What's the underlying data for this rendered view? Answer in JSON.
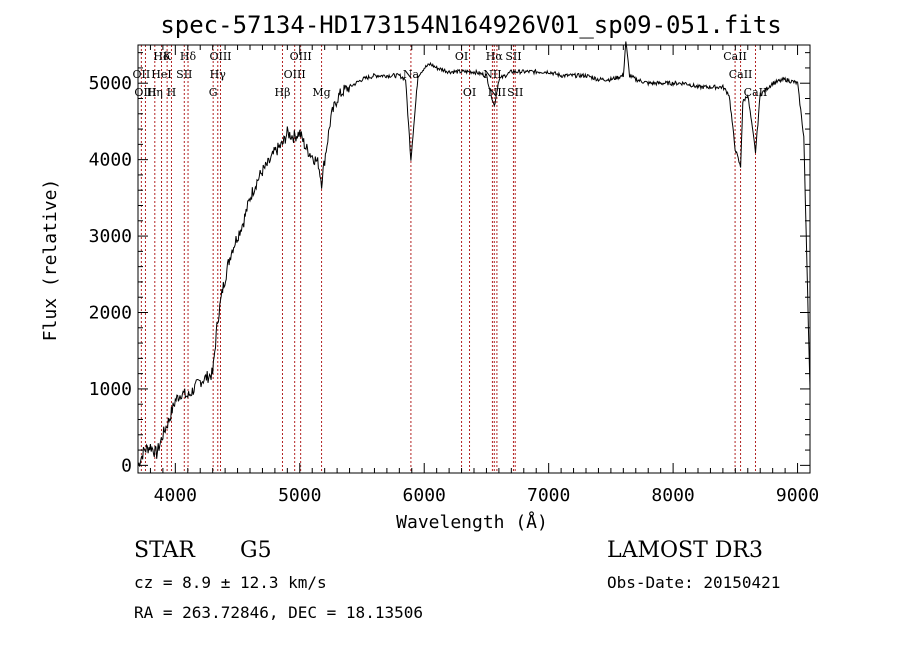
{
  "chart_data": {
    "type": "line",
    "title": "spec-57134-HD173154N164926V01_sp09-051.fits",
    "xlabel": "Wavelength (Å)",
    "ylabel": "Flux (relative)",
    "xlim": [
      3700,
      9100
    ],
    "ylim": [
      -100,
      5500
    ],
    "xticks": [
      4000,
      5000,
      6000,
      7000,
      8000,
      9000
    ],
    "yticks": [
      0,
      1000,
      2000,
      3000,
      4000,
      5000
    ],
    "line_color": "#000000",
    "marker_color": "#b22222",
    "x": [
      3700,
      3750,
      3800,
      3850,
      3900,
      3950,
      4000,
      4050,
      4100,
      4150,
      4200,
      4250,
      4300,
      4340,
      4380,
      4420,
      4450,
      4500,
      4550,
      4600,
      4650,
      4700,
      4750,
      4800,
      4861,
      4900,
      4950,
      5000,
      5050,
      5100,
      5150,
      5175,
      5200,
      5250,
      5300,
      5350,
      5400,
      5450,
      5500,
      5600,
      5700,
      5800,
      5850,
      5893,
      5950,
      6000,
      6050,
      6100,
      6200,
      6300,
      6400,
      6500,
      6563,
      6600,
      6700,
      6800,
      6900,
      7000,
      7100,
      7200,
      7300,
      7400,
      7500,
      7600,
      7620,
      7650,
      7700,
      7800,
      7900,
      8000,
      8100,
      8200,
      8300,
      8400,
      8450,
      8498,
      8542,
      8560,
      8600,
      8662,
      8700,
      8800,
      8900,
      9000,
      9050,
      9100
    ],
    "y": [
      0,
      200,
      250,
      150,
      400,
      600,
      850,
      950,
      900,
      1000,
      1100,
      1150,
      1200,
      1900,
      2300,
      2600,
      2800,
      3000,
      3200,
      3500,
      3700,
      3850,
      3950,
      4100,
      4200,
      4350,
      4300,
      4350,
      4150,
      4050,
      3950,
      3700,
      4000,
      4550,
      4800,
      4900,
      4950,
      5000,
      5050,
      5100,
      5100,
      5100,
      5050,
      4000,
      5100,
      5200,
      5250,
      5200,
      5150,
      5150,
      5150,
      5100,
      4700,
      5050,
      5150,
      5150,
      5150,
      5150,
      5100,
      5100,
      5100,
      5050,
      5050,
      5100,
      5550,
      5100,
      5050,
      5000,
      5000,
      5000,
      5000,
      4950,
      4950,
      4950,
      4850,
      4150,
      3900,
      4750,
      4850,
      4100,
      4850,
      5000,
      5050,
      5000,
      4300,
      1000
    ],
    "lines": [
      {
        "label": "Hδ",
        "x": 3889,
        "row": 1
      },
      {
        "label": "OII",
        "x": 3727,
        "row": 2
      },
      {
        "label": "OIII",
        "x": 3760,
        "row": 3
      },
      {
        "label": "K",
        "x": 3934,
        "row": 1
      },
      {
        "label": "HeI",
        "x": 3889,
        "row": 2
      },
      {
        "label": "Hη",
        "x": 3835,
        "row": 3
      },
      {
        "label": "SII",
        "x": 4072,
        "row": 2
      },
      {
        "label": "H",
        "x": 3969,
        "row": 3
      },
      {
        "label": "Hδ",
        "x": 4102,
        "row": 1
      },
      {
        "label": "OIII",
        "x": 4363,
        "row": 1
      },
      {
        "label": "Hγ",
        "x": 4341,
        "row": 2
      },
      {
        "label": "G",
        "x": 4304,
        "row": 3
      },
      {
        "label": "OIII",
        "x": 5007,
        "row": 1
      },
      {
        "label": "OIII",
        "x": 4959,
        "row": 2
      },
      {
        "label": "Hβ",
        "x": 4861,
        "row": 3
      },
      {
        "label": "Mg",
        "x": 5175,
        "row": 3
      },
      {
        "label": "Na",
        "x": 5893,
        "row": 2
      },
      {
        "label": "OI",
        "x": 6300,
        "row": 1
      },
      {
        "label": "OI",
        "x": 6364,
        "row": 3
      },
      {
        "label": "Hα",
        "x": 6563,
        "row": 1
      },
      {
        "label": "SII",
        "x": 6717,
        "row": 1
      },
      {
        "label": "NII",
        "x": 6548,
        "row": 2
      },
      {
        "label": "NII",
        "x": 6584,
        "row": 3
      },
      {
        "label": "SII",
        "x": 6731,
        "row": 3
      },
      {
        "label": "CaII",
        "x": 8498,
        "row": 1
      },
      {
        "label": "CaII",
        "x": 8542,
        "row": 2
      },
      {
        "label": "CaII",
        "x": 8662,
        "row": 3
      }
    ]
  },
  "info": {
    "object_class": "STAR",
    "subclass": "G5",
    "survey": "LAMOST DR3",
    "redshift": "cz = 8.9 ± 12.3 km/s",
    "obs_date": "Obs-Date: 20150421",
    "coords": "RA = 263.72846, DEC =  18.13506"
  }
}
